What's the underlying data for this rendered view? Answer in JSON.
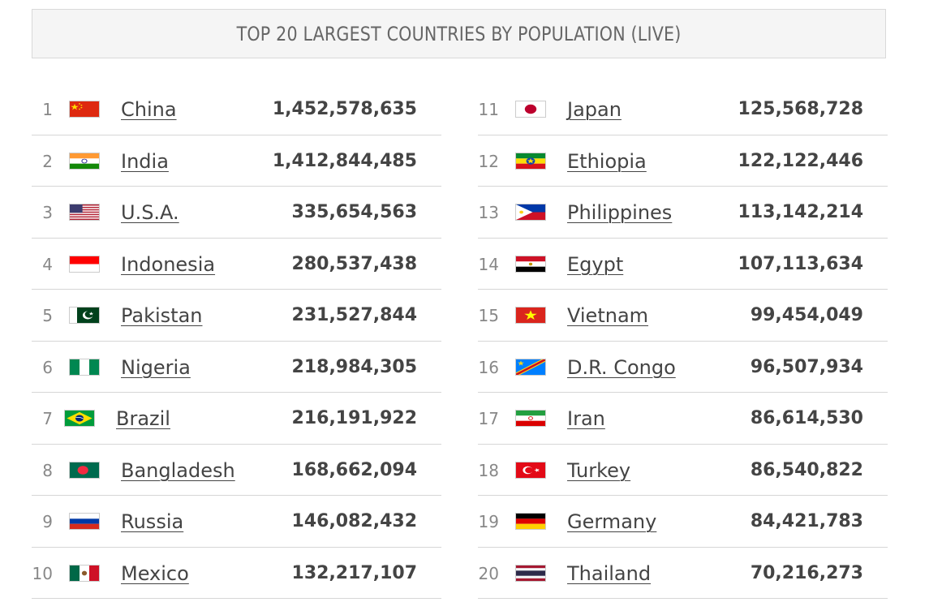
{
  "title": "TOP 20 LARGEST COUNTRIES BY POPULATION (LIVE)",
  "left_rows": [
    {
      "rank": "1",
      "name": "China",
      "population": "1,452,578,635",
      "flag": "china-flag-icon"
    },
    {
      "rank": "2",
      "name": "India",
      "population": "1,412,844,485",
      "flag": "india-flag-icon"
    },
    {
      "rank": "3",
      "name": "U.S.A.",
      "population": "335,654,563",
      "flag": "usa-flag-icon"
    },
    {
      "rank": "4",
      "name": "Indonesia",
      "population": "280,537,438",
      "flag": "indonesia-flag-icon"
    },
    {
      "rank": "5",
      "name": "Pakistan",
      "population": "231,527,844",
      "flag": "pakistan-flag-icon"
    },
    {
      "rank": "6",
      "name": "Nigeria",
      "population": "218,984,305",
      "flag": "nigeria-flag-icon"
    },
    {
      "rank": "7",
      "name": "Brazil",
      "population": "216,191,922",
      "flag": "brazil-flag-icon"
    },
    {
      "rank": "8",
      "name": "Bangladesh",
      "population": "168,662,094",
      "flag": "bangladesh-flag-icon"
    },
    {
      "rank": "9",
      "name": "Russia",
      "population": "146,082,432",
      "flag": "russia-flag-icon"
    },
    {
      "rank": "10",
      "name": "Mexico",
      "population": "132,217,107",
      "flag": "mexico-flag-icon"
    }
  ],
  "right_rows": [
    {
      "rank": "11",
      "name": "Japan",
      "population": "125,568,728",
      "flag": "japan-flag-icon"
    },
    {
      "rank": "12",
      "name": "Ethiopia",
      "population": "122,122,446",
      "flag": "ethiopia-flag-icon"
    },
    {
      "rank": "13",
      "name": "Philippines",
      "population": "113,142,214",
      "flag": "philippines-flag-icon"
    },
    {
      "rank": "14",
      "name": "Egypt",
      "population": "107,113,634",
      "flag": "egypt-flag-icon"
    },
    {
      "rank": "15",
      "name": "Vietnam",
      "population": "99,454,049",
      "flag": "vietnam-flag-icon"
    },
    {
      "rank": "16",
      "name": "D.R. Congo",
      "population": "96,507,934",
      "flag": "dr-congo-flag-icon"
    },
    {
      "rank": "17",
      "name": "Iran",
      "population": "86,614,530",
      "flag": "iran-flag-icon"
    },
    {
      "rank": "18",
      "name": "Turkey",
      "population": "86,540,822",
      "flag": "turkey-flag-icon"
    },
    {
      "rank": "19",
      "name": "Germany",
      "population": "84,421,783",
      "flag": "germany-flag-icon"
    },
    {
      "rank": "20",
      "name": "Thailand",
      "population": "70,216,273",
      "flag": "thailand-flag-icon"
    }
  ]
}
